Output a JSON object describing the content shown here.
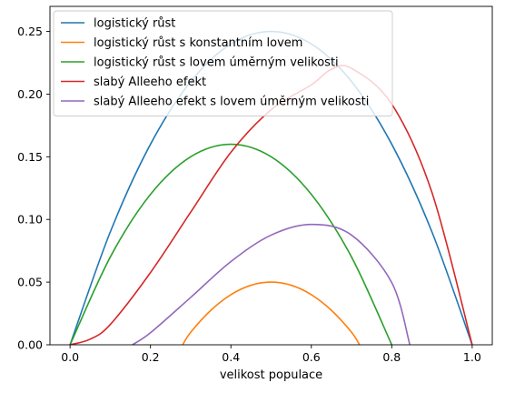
{
  "chart_data": {
    "type": "line",
    "xlabel": "velikost populace",
    "ylabel": "",
    "xlim": [
      -0.05,
      1.05
    ],
    "ylim": [
      0,
      0.27
    ],
    "xticks": [
      "0.0",
      "0.2",
      "0.4",
      "0.6",
      "0.8",
      "1.0"
    ],
    "yticks": [
      "0.00",
      "0.05",
      "0.10",
      "0.15",
      "0.20",
      "0.25"
    ],
    "legend_position": "top-left",
    "grid": false,
    "series": [
      {
        "name": "logistický růst",
        "color": "#1f77b4",
        "x": [
          0.0,
          0.1,
          0.2,
          0.3,
          0.4,
          0.5,
          0.6,
          0.7,
          0.8,
          0.9,
          1.0
        ],
        "y": [
          0.0,
          0.09,
          0.16,
          0.21,
          0.24,
          0.25,
          0.24,
          0.21,
          0.16,
          0.09,
          0.0
        ]
      },
      {
        "name": "logistický růst s konstantním lovem",
        "color": "#ff7f0e",
        "x": [
          0.28,
          0.3,
          0.35,
          0.4,
          0.45,
          0.5,
          0.55,
          0.6,
          0.65,
          0.7,
          0.72
        ],
        "y": [
          0.0,
          0.01,
          0.0275,
          0.04,
          0.0475,
          0.05,
          0.0475,
          0.04,
          0.0275,
          0.01,
          0.0
        ]
      },
      {
        "name": "logistický růst s lovem úměrným velikosti",
        "color": "#2ca02c",
        "x": [
          0.0,
          0.1,
          0.2,
          0.3,
          0.4,
          0.5,
          0.6,
          0.7,
          0.8
        ],
        "y": [
          0.0,
          0.07,
          0.12,
          0.15,
          0.16,
          0.15,
          0.12,
          0.07,
          0.0
        ]
      },
      {
        "name": "slabý Alleeho efekt",
        "color": "#d62728",
        "x": [
          0.0,
          0.05,
          0.1,
          0.2,
          0.3,
          0.4,
          0.5,
          0.6,
          0.65,
          0.7,
          0.8,
          0.9,
          1.0
        ],
        "y": [
          0.0,
          0.0045,
          0.0162,
          0.0576,
          0.1058,
          0.1536,
          0.1875,
          0.2074,
          0.2198,
          0.2205,
          0.192,
          0.1215,
          0.0
        ]
      },
      {
        "name": "slabý Alleeho efekt s lovem úměrným velikosti",
        "color": "#9467bd",
        "x": [
          0.155,
          0.2,
          0.3,
          0.4,
          0.5,
          0.6,
          0.7,
          0.8,
          0.845
        ],
        "y": [
          0.0,
          0.0096,
          0.0378,
          0.0664,
          0.0875,
          0.096,
          0.0875,
          0.0496,
          0.0
        ]
      }
    ]
  }
}
